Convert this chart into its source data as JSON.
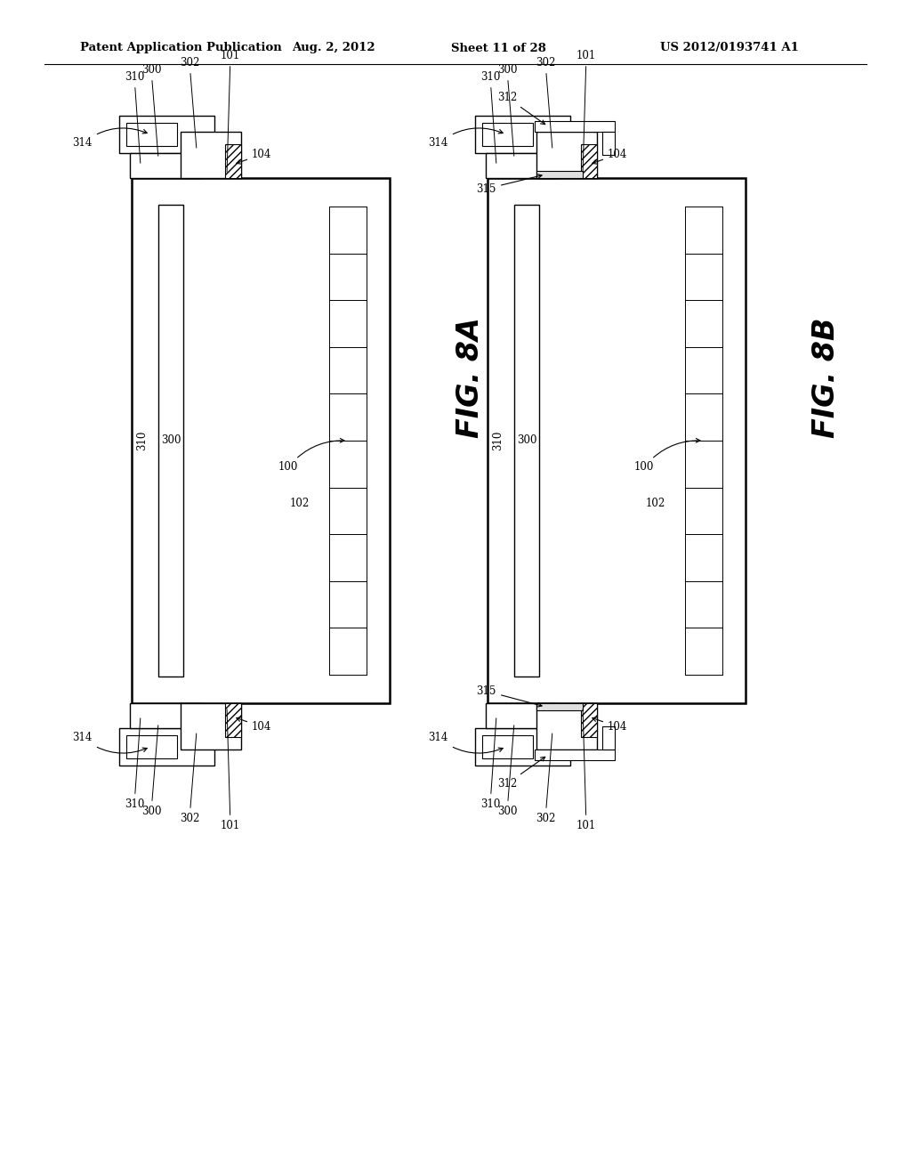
{
  "title_left": "Patent Application Publication",
  "title_center": "Aug. 2, 2012",
  "title_right_sheet": "Sheet 11 of 28",
  "title_right_patent": "US 2012/0193741 A1",
  "fig_a_label": "FIG. 8A",
  "fig_b_label": "FIG. 8B",
  "background_color": "#ffffff",
  "line_color": "#000000"
}
